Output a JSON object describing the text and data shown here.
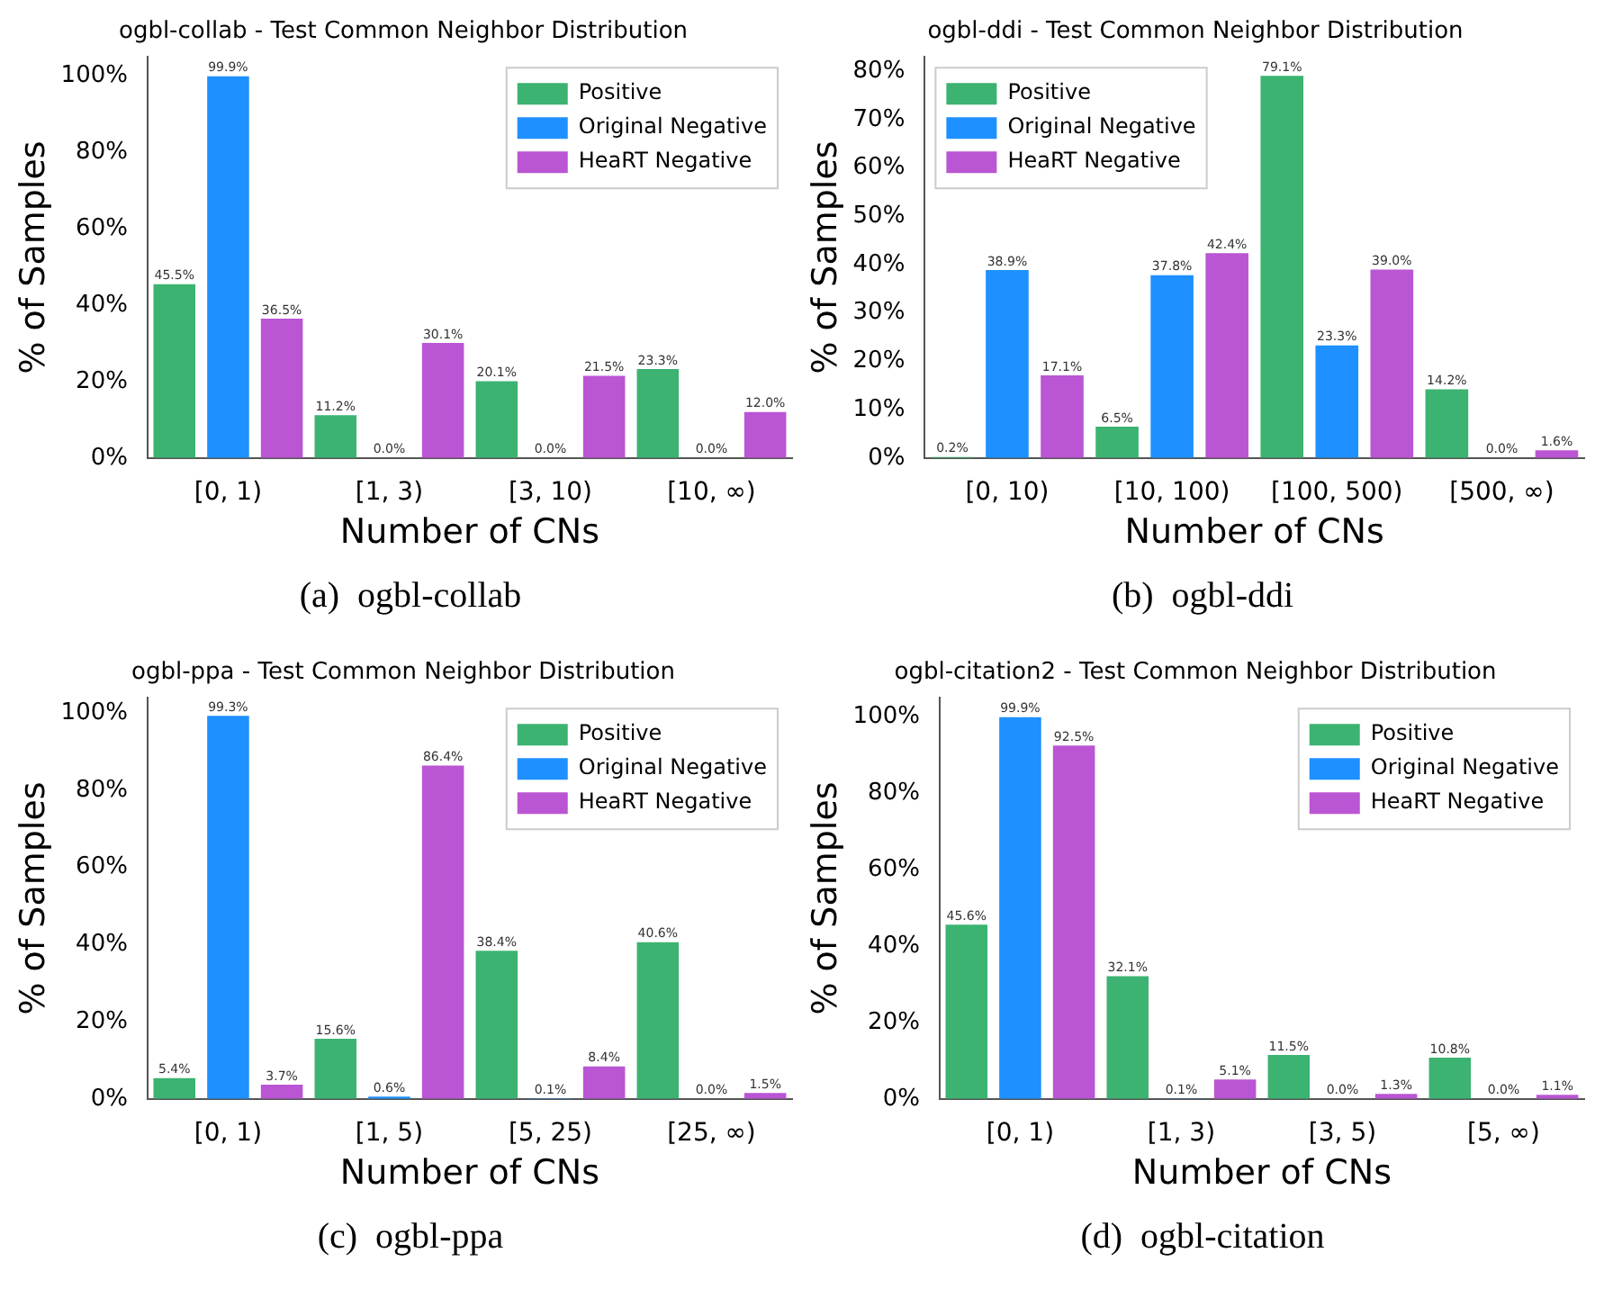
{
  "chart_data": [
    {
      "type": "bar",
      "title": "ogbl-collab - Test Common Neighbor Distribution",
      "xlabel": "Number of CNs",
      "ylabel": "% of Samples",
      "categories": [
        "[0, 1)",
        "[1, 3)",
        "[3, 10)",
        "[10, ∞)"
      ],
      "series": [
        {
          "name": "Positive",
          "color": "#3cb371",
          "values": [
            45.5,
            11.2,
            20.1,
            23.3
          ],
          "value_labels": [
            "45.5%",
            "11.2%",
            "20.1%",
            "23.3%"
          ]
        },
        {
          "name": "Original Negative",
          "color": "#1e90ff",
          "values": [
            99.9,
            0.0,
            0.0,
            0.0
          ],
          "value_labels": [
            "99.9%",
            "0.0%",
            "0.0%",
            "0.0%"
          ]
        },
        {
          "name": "HeaRT Negative",
          "color": "#ba55d3",
          "values": [
            36.5,
            30.1,
            21.5,
            12.0
          ],
          "value_labels": [
            "36.5%",
            "30.1%",
            "21.5%",
            "12.0%"
          ]
        }
      ],
      "ylim": [
        0,
        105
      ],
      "yticks": [
        {
          "value": 0,
          "label": "0%"
        },
        {
          "value": 20,
          "label": "20%"
        },
        {
          "value": 40,
          "label": "40%"
        },
        {
          "value": 60,
          "label": "60%"
        },
        {
          "value": 80,
          "label": "80%"
        },
        {
          "value": 100,
          "label": "100%"
        }
      ],
      "grid": false,
      "legend": "top right",
      "annotations": [
        "(a)  ogbl-collab"
      ]
    },
    {
      "type": "bar",
      "title": "ogbl-ddi - Test Common Neighbor Distribution",
      "xlabel": "Number of CNs",
      "ylabel": "% of Samples",
      "categories": [
        "[0, 10)",
        "[10, 100)",
        "[100, 500)",
        "[500, ∞)"
      ],
      "series": [
        {
          "name": "Positive",
          "color": "#3cb371",
          "values": [
            0.2,
            6.5,
            79.1,
            14.2
          ],
          "value_labels": [
            "0.2%",
            "6.5%",
            "79.1%",
            "14.2%"
          ]
        },
        {
          "name": "Original Negative",
          "color": "#1e90ff",
          "values": [
            38.9,
            37.8,
            23.3,
            0.0
          ],
          "value_labels": [
            "38.9%",
            "37.8%",
            "23.3%",
            "0.0%"
          ]
        },
        {
          "name": "HeaRT Negative",
          "color": "#ba55d3",
          "values": [
            17.1,
            42.4,
            39.0,
            1.6
          ],
          "value_labels": [
            "17.1%",
            "42.4%",
            "39.0%",
            "1.6%"
          ]
        }
      ],
      "ylim": [
        0,
        83
      ],
      "yticks": [
        {
          "value": 0,
          "label": "0%"
        },
        {
          "value": 10,
          "label": "10%"
        },
        {
          "value": 20,
          "label": "20%"
        },
        {
          "value": 30,
          "label": "30%"
        },
        {
          "value": 40,
          "label": "40%"
        },
        {
          "value": 50,
          "label": "50%"
        },
        {
          "value": 60,
          "label": "60%"
        },
        {
          "value": 70,
          "label": "70%"
        },
        {
          "value": 80,
          "label": "80%"
        }
      ],
      "grid": false,
      "legend": "top left",
      "annotations": [
        "(b)  ogbl-ddi"
      ]
    },
    {
      "type": "bar",
      "title": "ogbl-ppa - Test Common Neighbor Distribution",
      "xlabel": "Number of CNs",
      "ylabel": "% of Samples",
      "categories": [
        "[0, 1)",
        "[1, 5)",
        "[5, 25)",
        "[25, ∞)"
      ],
      "series": [
        {
          "name": "Positive",
          "color": "#3cb371",
          "values": [
            5.4,
            15.6,
            38.4,
            40.6
          ],
          "value_labels": [
            "5.4%",
            "15.6%",
            "38.4%",
            "40.6%"
          ]
        },
        {
          "name": "Original Negative",
          "color": "#1e90ff",
          "values": [
            99.3,
            0.6,
            0.1,
            0.0
          ],
          "value_labels": [
            "99.3%",
            "0.6%",
            "0.1%",
            "0.0%"
          ]
        },
        {
          "name": "HeaRT Negative",
          "color": "#ba55d3",
          "values": [
            3.7,
            86.4,
            8.4,
            1.5
          ],
          "value_labels": [
            "3.7%",
            "86.4%",
            "8.4%",
            "1.5%"
          ]
        }
      ],
      "ylim": [
        0,
        104
      ],
      "yticks": [
        {
          "value": 0,
          "label": "0%"
        },
        {
          "value": 20,
          "label": "20%"
        },
        {
          "value": 40,
          "label": "40%"
        },
        {
          "value": 60,
          "label": "60%"
        },
        {
          "value": 80,
          "label": "80%"
        },
        {
          "value": 100,
          "label": "100%"
        }
      ],
      "grid": false,
      "legend": "top right",
      "annotations": [
        "(c)  ogbl-ppa"
      ]
    },
    {
      "type": "bar",
      "title": "ogbl-citation2 - Test Common Neighbor Distribution",
      "xlabel": "Number of CNs",
      "ylabel": "% of Samples",
      "categories": [
        "[0, 1)",
        "[1, 3)",
        "[3, 5)",
        "[5, ∞)"
      ],
      "series": [
        {
          "name": "Positive",
          "color": "#3cb371",
          "values": [
            45.6,
            32.1,
            11.5,
            10.8
          ],
          "value_labels": [
            "45.6%",
            "32.1%",
            "11.5%",
            "10.8%"
          ]
        },
        {
          "name": "Original Negative",
          "color": "#1e90ff",
          "values": [
            99.9,
            0.1,
            0.0,
            0.0
          ],
          "value_labels": [
            "99.9%",
            "0.1%",
            "0.0%",
            "0.0%"
          ]
        },
        {
          "name": "HeaRT Negative",
          "color": "#ba55d3",
          "values": [
            92.5,
            5.1,
            1.3,
            1.1
          ],
          "value_labels": [
            "92.5%",
            "5.1%",
            "1.3%",
            "1.1%"
          ]
        }
      ],
      "ylim": [
        0,
        105
      ],
      "yticks": [
        {
          "value": 0,
          "label": "0%"
        },
        {
          "value": 20,
          "label": "20%"
        },
        {
          "value": 40,
          "label": "40%"
        },
        {
          "value": 60,
          "label": "60%"
        },
        {
          "value": 80,
          "label": "80%"
        },
        {
          "value": 100,
          "label": "100%"
        }
      ],
      "grid": false,
      "legend": "top right",
      "annotations": [
        "(d)  ogbl-citation"
      ]
    }
  ]
}
